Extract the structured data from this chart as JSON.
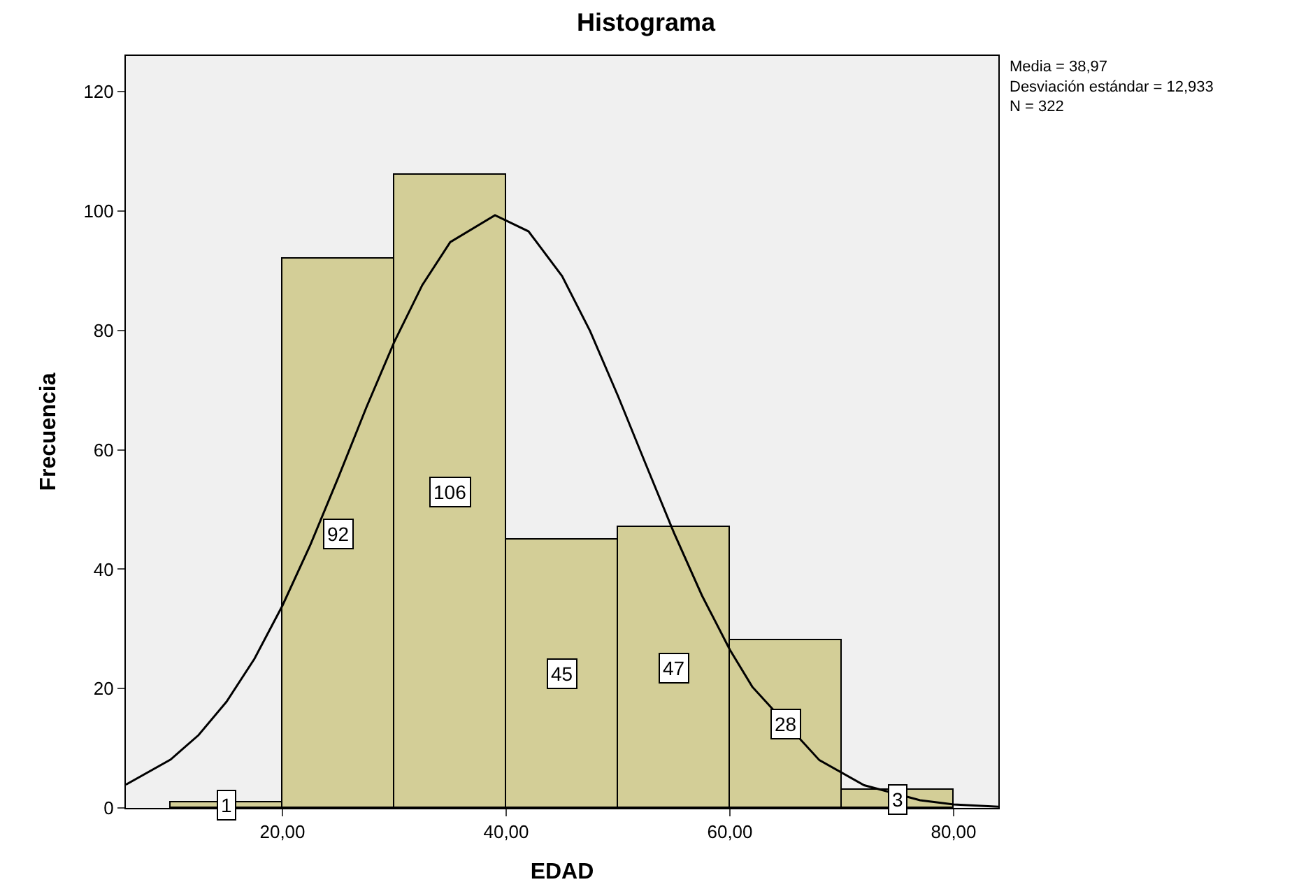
{
  "chart_data": {
    "type": "histogram",
    "title": "Histograma",
    "xlabel": "EDAD",
    "ylabel": "Frecuencia",
    "bins": [
      10,
      20,
      30,
      40,
      50,
      60,
      70,
      80
    ],
    "values": [
      1,
      92,
      106,
      45,
      47,
      28,
      3
    ],
    "color": "#d3ce97",
    "value_labels": [
      "1",
      "92",
      "106",
      "45",
      "47",
      "28",
      "3"
    ],
    "series": [
      {
        "type": "line",
        "color": "#000000",
        "x": [
          6,
          10,
          12.5,
          15,
          17.5,
          20,
          22.5,
          25,
          27.5,
          30,
          32.5,
          35,
          39,
          42,
          45,
          47.5,
          50,
          52.5,
          55,
          57.5,
          60,
          62,
          68,
          72,
          77,
          80,
          84
        ],
        "values": [
          3.9,
          8.1,
          12.2,
          17.8,
          25.0,
          33.9,
          44.1,
          55.4,
          67.1,
          78.1,
          87.6,
          94.8,
          99.3,
          96.6,
          89.1,
          79.9,
          69.0,
          57.5,
          46.1,
          35.6,
          26.5,
          20.3,
          8.0,
          3.8,
          1.3,
          0.6,
          0.2
        ]
      }
    ],
    "annotations": [
      "Media = 38,97\nDesviación estándar = 12,933\nN = 322"
    ],
    "xlim": [
      6,
      84
    ],
    "xticks": [
      {
        "value": 20,
        "label": "20,00"
      },
      {
        "value": 40,
        "label": "40,00"
      },
      {
        "value": 60,
        "label": "60,00"
      },
      {
        "value": 80,
        "label": "80,00"
      }
    ],
    "ylim": [
      0,
      126
    ],
    "yticks": [
      0,
      20,
      40,
      60,
      80,
      100,
      120
    ]
  }
}
